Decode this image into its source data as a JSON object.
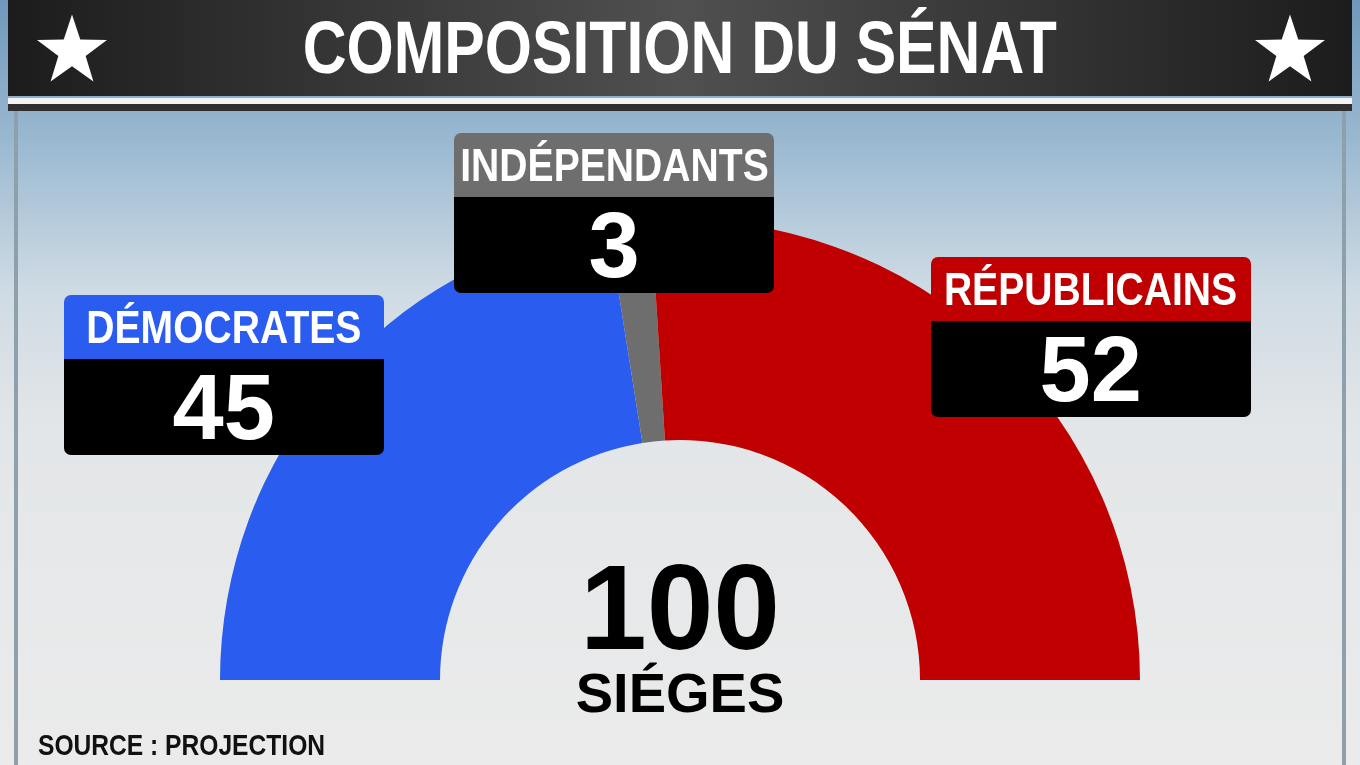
{
  "chart_data": {
    "type": "donut",
    "title": "COMPOSITION DU SÉNAT",
    "categories": [
      "DÉMOCRATES",
      "INDÉPENDANTS",
      "RÉPUBLICAINS"
    ],
    "values": [
      45,
      3,
      52
    ],
    "colors": [
      "#2a5cf0",
      "#6e6e6e",
      "#c00000"
    ],
    "data_labels": true,
    "annotations": [
      "100",
      "SIÉGES",
      "SOURCE : PROJECTION"
    ]
  }
}
